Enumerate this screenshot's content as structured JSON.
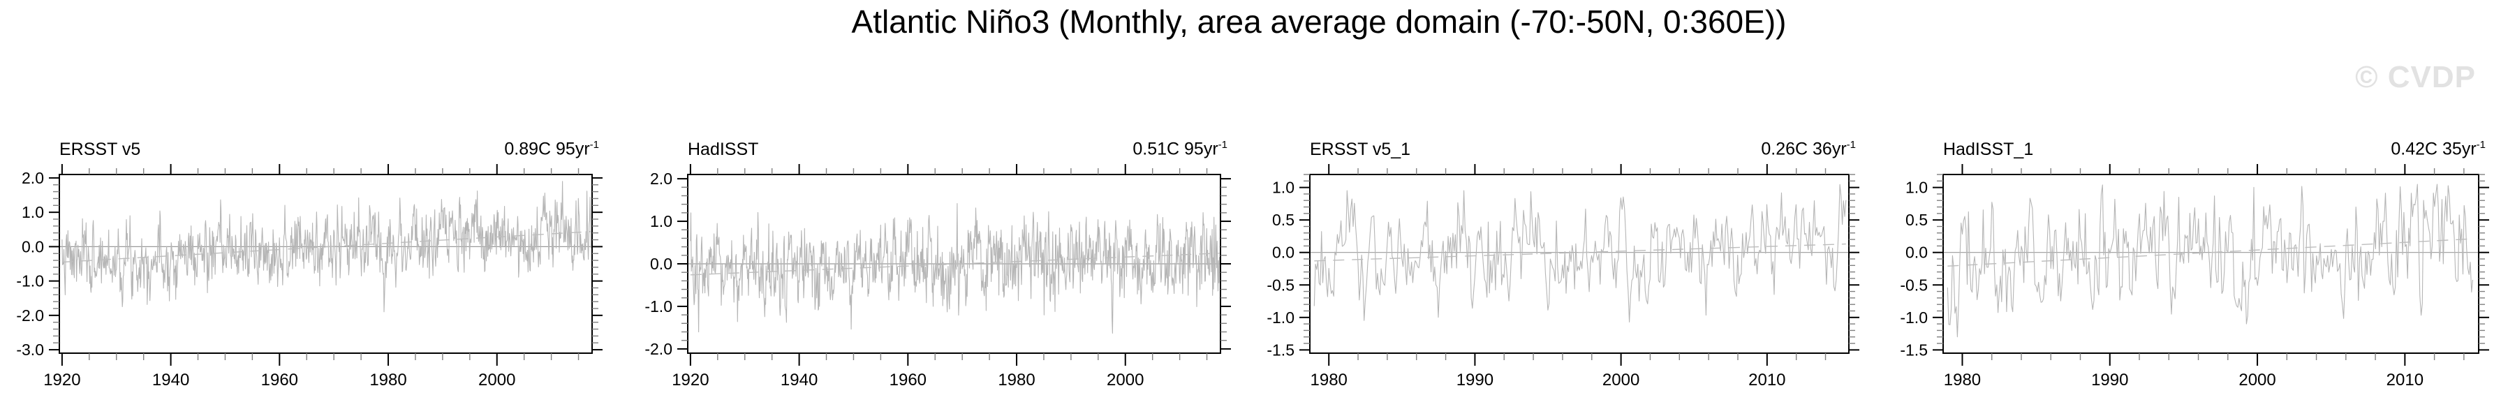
{
  "title": "Atlantic Niño3 (Monthly, area average domain (-70:-50N, 0:360E))",
  "watermark": "© CVDP",
  "colors": {
    "series_line": "#b5b5b5",
    "zero_line": "#9a9a9a",
    "trend_line": "#bdbdbd",
    "axis": "#000000",
    "minor_tick": "#808080",
    "watermark": "#e2e2e2",
    "text": "#000000"
  },
  "chart_data": [
    {
      "type": "line",
      "dataset": "ERSST v5",
      "trend_text": "0.89C 95yr",
      "trend_exp": "-1",
      "frame_x": [
        1919.5,
        2017.5
      ],
      "x_data": [
        1920.0,
        2017.3
      ],
      "x_labels": [
        "1920",
        "1940",
        "1960",
        "1980",
        "2000"
      ],
      "x_anchor": 1920,
      "x_major_step": 20,
      "x_minor_step": 5,
      "ylim": [
        -3.1,
        2.1
      ],
      "y_labels": [
        "2.0",
        "1.0",
        "0.0",
        "-1.0",
        "-2.0",
        "-3.0"
      ],
      "y_minor_step": 0.2,
      "zero_line": 0.0,
      "trend_start": -0.45,
      "trend_end": 0.44,
      "points_per_year": 12,
      "noise_sd": 0.5,
      "ar": 0.5,
      "clip": [
        -2.05,
        1.9
      ],
      "seed": 7
    },
    {
      "type": "line",
      "dataset": "HadISST",
      "trend_text": "0.51C 95yr",
      "trend_exp": "-1",
      "frame_x": [
        1919.5,
        2017.5
      ],
      "x_data": [
        1920.0,
        2017.3
      ],
      "x_labels": [
        "1920",
        "1940",
        "1960",
        "1980",
        "2000"
      ],
      "x_anchor": 1920,
      "x_major_step": 20,
      "x_minor_step": 5,
      "ylim": [
        -2.1,
        2.1
      ],
      "y_labels": [
        "2.0",
        "1.0",
        "0.0",
        "-1.0",
        "-2.0"
      ],
      "y_minor_step": 0.2,
      "zero_line": 0.0,
      "trend_start": -0.26,
      "trend_end": 0.25,
      "points_per_year": 12,
      "noise_sd": 0.48,
      "ar": 0.45,
      "clip": [
        -1.9,
        1.55
      ],
      "seed": 13
    },
    {
      "type": "line",
      "dataset": "ERSST v5_1",
      "trend_text": "0.26C 36yr",
      "trend_exp": "-1",
      "frame_x": [
        1978.7,
        2015.6
      ],
      "x_data": [
        1979.0,
        2015.4
      ],
      "x_labels": [
        "1980",
        "1990",
        "2000",
        "2010"
      ],
      "x_anchor": 1980,
      "x_major_step": 10,
      "x_minor_step": 2,
      "ylim": [
        -1.55,
        1.2
      ],
      "y_labels": [
        "1.0",
        "0.5",
        "0.0",
        "-0.5",
        "-1.0",
        "-1.5"
      ],
      "y_minor_step": 0.1,
      "zero_line": 0.0,
      "trend_start": -0.13,
      "trend_end": 0.13,
      "points_per_year": 12,
      "noise_sd": 0.42,
      "ar": 0.55,
      "clip": [
        -1.2,
        1.15
      ],
      "seed": 21
    },
    {
      "type": "line",
      "dataset": "HadISST_1",
      "trend_text": "0.42C 35yr",
      "trend_exp": "-1",
      "frame_x": [
        1978.7,
        2015.0
      ],
      "x_data": [
        1979.0,
        2014.6
      ],
      "x_labels": [
        "1980",
        "1990",
        "2000",
        "2010"
      ],
      "x_anchor": 1980,
      "x_major_step": 10,
      "x_minor_step": 2,
      "ylim": [
        -1.55,
        1.2
      ],
      "y_labels": [
        "1.0",
        "0.5",
        "0.0",
        "-0.5",
        "-1.0",
        "-1.5"
      ],
      "y_minor_step": 0.1,
      "zero_line": 0.0,
      "trend_start": -0.21,
      "trend_end": 0.21,
      "points_per_year": 12,
      "noise_sd": 0.46,
      "ar": 0.5,
      "clip": [
        -1.3,
        1.05
      ],
      "seed": 42
    }
  ]
}
